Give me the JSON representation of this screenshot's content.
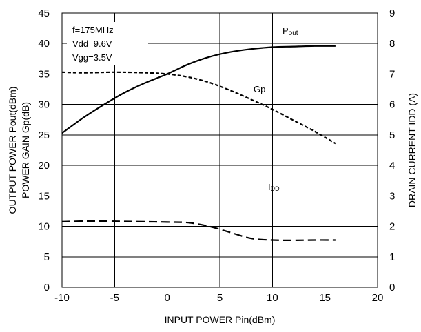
{
  "chart_data": {
    "type": "line",
    "title": "",
    "xlabel": "INPUT POWER Pin(dBm)",
    "ylabel_lines": [
      "OUTPUT POWER Pout(dBm)",
      "POWER GAIN Gp(dB)"
    ],
    "y2label": "DRAIN CURRENT IDD (A)",
    "xlim": [
      -10,
      20
    ],
    "ylim": [
      0,
      45
    ],
    "y2lim": [
      0,
      9
    ],
    "xticks": [
      "-10",
      "-5",
      "0",
      "5",
      "10",
      "15",
      "20"
    ],
    "yticks": [
      "0",
      "5",
      "10",
      "15",
      "20",
      "25",
      "30",
      "35",
      "40",
      "45"
    ],
    "y2ticks": [
      "0",
      "1",
      "2",
      "3",
      "4",
      "5",
      "6",
      "7",
      "8",
      "9"
    ],
    "grid": true,
    "conditions": [
      "f=175MHz",
      "Vdd=9.6V",
      "Vgg=3.5V"
    ],
    "series": [
      {
        "name": "Pout",
        "label_main": "P",
        "label_sub": "out",
        "axis": "left",
        "style": "solid",
        "points": [
          [
            -10,
            25.3
          ],
          [
            -8,
            27.8
          ],
          [
            -6,
            30.0
          ],
          [
            -4,
            32.0
          ],
          [
            -2,
            33.6
          ],
          [
            0,
            35.0
          ],
          [
            2,
            36.6
          ],
          [
            4,
            37.8
          ],
          [
            6,
            38.6
          ],
          [
            8,
            39.1
          ],
          [
            10,
            39.4
          ],
          [
            12,
            39.5
          ],
          [
            14,
            39.6
          ],
          [
            16,
            39.6
          ]
        ]
      },
      {
        "name": "Gp",
        "label_main": "Gp",
        "label_sub": "",
        "axis": "left",
        "style": "short-dash",
        "points": [
          [
            -10,
            35.3
          ],
          [
            -8,
            35.2
          ],
          [
            -5,
            35.3
          ],
          [
            -2,
            35.2
          ],
          [
            0,
            35.0
          ],
          [
            2,
            34.5
          ],
          [
            4,
            33.6
          ],
          [
            6,
            32.3
          ],
          [
            8,
            30.8
          ],
          [
            10,
            29.2
          ],
          [
            12,
            27.4
          ],
          [
            14,
            25.6
          ],
          [
            16,
            23.6
          ]
        ]
      },
      {
        "name": "IDD",
        "label_main": "I",
        "label_sub": "DD",
        "axis": "right",
        "style": "long-dash",
        "points": [
          [
            -10,
            2.15
          ],
          [
            -8,
            2.17
          ],
          [
            -6,
            2.17
          ],
          [
            -4,
            2.16
          ],
          [
            -2,
            2.15
          ],
          [
            0,
            2.14
          ],
          [
            2,
            2.12
          ],
          [
            4,
            2.0
          ],
          [
            6,
            1.8
          ],
          [
            8,
            1.6
          ],
          [
            10,
            1.55
          ],
          [
            12,
            1.54
          ],
          [
            14,
            1.55
          ],
          [
            16,
            1.55
          ]
        ]
      }
    ]
  }
}
